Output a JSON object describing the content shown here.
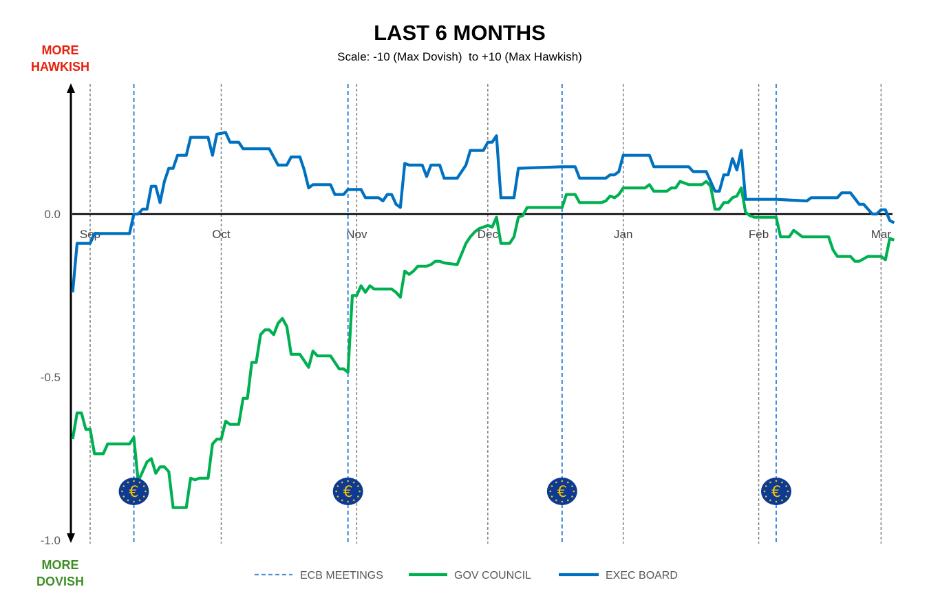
{
  "chart_data": {
    "type": "line",
    "title": "LAST 6 MONTHS",
    "subtitle": "Scale: -10 (Max Dovish)  to +10 (Max Hawkish)",
    "top_label": "MORE HAWKISH",
    "bottom_label": "MORE DOVISH",
    "ylim": [
      -1.0,
      0.4
    ],
    "yticks": [
      "0.0",
      "-0.5",
      "-1.0"
    ],
    "ytick_values": [
      0.0,
      -0.5,
      -1.0
    ],
    "xticks": [
      "Sep",
      "Oct",
      "Nov",
      "Dec",
      "Jan",
      "Feb",
      "Mar"
    ],
    "xtick_dates": [
      "Sep 1",
      "Oct 1",
      "Nov 1",
      "Dec 1",
      "Jan 1",
      "Feb 1",
      "Mar 1"
    ],
    "grid": "vertical dashed at month starts",
    "legend_position": "bottom",
    "colors": {
      "meetings": "#4A90D9",
      "gov_council": "#00B050",
      "exec_board": "#0070C0",
      "hawkish": "#E8200C",
      "dovish": "#3F8F28"
    },
    "meetings": {
      "name": "ECB MEETINGS",
      "dates": [
        "Sep 11",
        "Oct 30",
        "Dec 18",
        "Feb 5"
      ],
      "icon": "ecb-euro-icon"
    },
    "series": [
      {
        "name": "GOV COUNCIL",
        "points": [
          [
            "Aug 28",
            -0.69
          ],
          [
            "Aug 29",
            -0.61
          ],
          [
            "Aug 30",
            -0.61
          ],
          [
            "Aug 31",
            -0.66
          ],
          [
            "Sep 1",
            -0.66
          ],
          [
            "Sep 2",
            -0.735
          ],
          [
            "Sep 4",
            -0.735
          ],
          [
            "Sep 5",
            -0.705
          ],
          [
            "Sep 10",
            -0.705
          ],
          [
            "Sep 11",
            -0.685
          ],
          [
            "Sep 12",
            -0.82
          ],
          [
            "Sep 14",
            -0.76
          ],
          [
            "Sep 15",
            -0.75
          ],
          [
            "Sep 16",
            -0.795
          ],
          [
            "Sep 17",
            -0.775
          ],
          [
            "Sep 18",
            -0.775
          ],
          [
            "Sep 19",
            -0.79
          ],
          [
            "Sep 20",
            -0.9
          ],
          [
            "Sep 23",
            -0.9
          ],
          [
            "Sep 24",
            -0.81
          ],
          [
            "Sep 25",
            -0.815
          ],
          [
            "Sep 26",
            -0.81
          ],
          [
            "Sep 28",
            -0.81
          ],
          [
            "Sep 29",
            -0.705
          ],
          [
            "Sep 30",
            -0.69
          ],
          [
            "Oct 1",
            -0.69
          ],
          [
            "Oct 2",
            -0.635
          ],
          [
            "Oct 3",
            -0.645
          ],
          [
            "Oct 5",
            -0.645
          ],
          [
            "Oct 6",
            -0.565
          ],
          [
            "Oct 7",
            -0.565
          ],
          [
            "Oct 8",
            -0.455
          ],
          [
            "Oct 9",
            -0.455
          ],
          [
            "Oct 10",
            -0.37
          ],
          [
            "Oct 11",
            -0.355
          ],
          [
            "Oct 12",
            -0.355
          ],
          [
            "Oct 13",
            -0.37
          ],
          [
            "Oct 14",
            -0.335
          ],
          [
            "Oct 15",
            -0.32
          ],
          [
            "Oct 16",
            -0.345
          ],
          [
            "Oct 17",
            -0.43
          ],
          [
            "Oct 19",
            -0.43
          ],
          [
            "Oct 21",
            -0.47
          ],
          [
            "Oct 22",
            -0.42
          ],
          [
            "Oct 23",
            -0.435
          ],
          [
            "Oct 26",
            -0.435
          ],
          [
            "Oct 28",
            -0.475
          ],
          [
            "Oct 29",
            -0.475
          ],
          [
            "Oct 30",
            -0.485
          ],
          [
            "Oct 31",
            -0.25
          ],
          [
            "Nov 1",
            -0.25
          ],
          [
            "Nov 2",
            -0.22
          ],
          [
            "Nov 3",
            -0.24
          ],
          [
            "Nov 4",
            -0.22
          ],
          [
            "Nov 5",
            -0.23
          ],
          [
            "Nov 9",
            -0.23
          ],
          [
            "Nov 10",
            -0.24
          ],
          [
            "Nov 11",
            -0.255
          ],
          [
            "Nov 12",
            -0.175
          ],
          [
            "Nov 13",
            -0.185
          ],
          [
            "Nov 14",
            -0.175
          ],
          [
            "Nov 15",
            -0.16
          ],
          [
            "Nov 17",
            -0.16
          ],
          [
            "Nov 18",
            -0.155
          ],
          [
            "Nov 19",
            -0.145
          ],
          [
            "Nov 20",
            -0.145
          ],
          [
            "Nov 21",
            -0.15
          ],
          [
            "Nov 24",
            -0.155
          ],
          [
            "Nov 26",
            -0.09
          ],
          [
            "Nov 27",
            -0.07
          ],
          [
            "Nov 28",
            -0.055
          ],
          [
            "Nov 29",
            -0.045
          ],
          [
            "Dec 1",
            -0.035
          ],
          [
            "Dec 2",
            -0.04
          ],
          [
            "Dec 3",
            -0.01
          ],
          [
            "Dec 4",
            -0.09
          ],
          [
            "Dec 6",
            -0.09
          ],
          [
            "Dec 7",
            -0.07
          ],
          [
            "Dec 8",
            -0.01
          ],
          [
            "Dec 9",
            -0.005
          ],
          [
            "Dec 10",
            0.02
          ],
          [
            "Dec 18",
            0.02
          ],
          [
            "Dec 19",
            0.06
          ],
          [
            "Dec 21",
            0.06
          ],
          [
            "Dec 22",
            0.035
          ],
          [
            "Dec 27",
            0.035
          ],
          [
            "Dec 28",
            0.04
          ],
          [
            "Dec 29",
            0.055
          ],
          [
            "Dec 30",
            0.05
          ],
          [
            "Dec 31",
            0.06
          ],
          [
            "Jan 1",
            0.08
          ],
          [
            "Jan 6",
            0.08
          ],
          [
            "Jan 7",
            0.09
          ],
          [
            "Jan 8",
            0.07
          ],
          [
            "Jan 11",
            0.07
          ],
          [
            "Jan 12",
            0.08
          ],
          [
            "Jan 13",
            0.08
          ],
          [
            "Jan 14",
            0.1
          ],
          [
            "Jan 15",
            0.095
          ],
          [
            "Jan 16",
            0.09
          ],
          [
            "Jan 19",
            0.09
          ],
          [
            "Jan 20",
            0.1
          ],
          [
            "Jan 21",
            0.085
          ],
          [
            "Jan 22",
            0.015
          ],
          [
            "Jan 23",
            0.015
          ],
          [
            "Jan 24",
            0.035
          ],
          [
            "Jan 25",
            0.035
          ],
          [
            "Jan 26",
            0.05
          ],
          [
            "Jan 27",
            0.055
          ],
          [
            "Jan 28",
            0.08
          ],
          [
            "Jan 29",
            0.005
          ],
          [
            "Jan 30",
            -0.005
          ],
          [
            "Jan 31",
            -0.01
          ],
          [
            "Feb 1",
            -0.01
          ],
          [
            "Feb 5",
            -0.01
          ],
          [
            "Feb 6",
            -0.07
          ],
          [
            "Feb 8",
            -0.07
          ],
          [
            "Feb 9",
            -0.05
          ],
          [
            "Feb 10",
            -0.06
          ],
          [
            "Feb 11",
            -0.07
          ],
          [
            "Feb 12",
            -0.07
          ],
          [
            "Feb 17",
            -0.07
          ],
          [
            "Feb 18",
            -0.11
          ],
          [
            "Feb 19",
            -0.13
          ],
          [
            "Feb 22",
            -0.13
          ],
          [
            "Feb 23",
            -0.145
          ],
          [
            "Feb 24",
            -0.145
          ],
          [
            "Feb 26",
            -0.13
          ],
          [
            "Mar 1",
            -0.13
          ],
          [
            "Mar 2",
            -0.14
          ],
          [
            "Mar 3",
            -0.075
          ],
          [
            "Mar 4",
            -0.08
          ]
        ]
      },
      {
        "name": "EXEC BOARD",
        "points": [
          [
            "Aug 28",
            -0.24
          ],
          [
            "Aug 29",
            -0.09
          ],
          [
            "Sep 1",
            -0.09
          ],
          [
            "Sep 2",
            -0.06
          ],
          [
            "Sep 10",
            -0.06
          ],
          [
            "Sep 11",
            0.0
          ],
          [
            "Sep 12",
            0.0
          ],
          [
            "Sep 13",
            0.015
          ],
          [
            "Sep 14",
            0.015
          ],
          [
            "Sep 15",
            0.085
          ],
          [
            "Sep 16",
            0.085
          ],
          [
            "Sep 17",
            0.035
          ],
          [
            "Sep 18",
            0.1
          ],
          [
            "Sep 19",
            0.14
          ],
          [
            "Sep 20",
            0.14
          ],
          [
            "Sep 21",
            0.18
          ],
          [
            "Sep 23",
            0.18
          ],
          [
            "Sep 24",
            0.235
          ],
          [
            "Sep 28",
            0.235
          ],
          [
            "Sep 29",
            0.18
          ],
          [
            "Sep 30",
            0.245
          ],
          [
            "Oct 2",
            0.25
          ],
          [
            "Oct 3",
            0.22
          ],
          [
            "Oct 5",
            0.22
          ],
          [
            "Oct 6",
            0.2
          ],
          [
            "Oct 12",
            0.2
          ],
          [
            "Oct 14",
            0.15
          ],
          [
            "Oct 16",
            0.15
          ],
          [
            "Oct 17",
            0.175
          ],
          [
            "Oct 19",
            0.175
          ],
          [
            "Oct 20",
            0.135
          ],
          [
            "Oct 21",
            0.08
          ],
          [
            "Oct 22",
            0.09
          ],
          [
            "Oct 23",
            0.09
          ],
          [
            "Oct 26",
            0.09
          ],
          [
            "Oct 27",
            0.06
          ],
          [
            "Oct 29",
            0.06
          ],
          [
            "Oct 30",
            0.075
          ],
          [
            "Nov 2",
            0.075
          ],
          [
            "Nov 3",
            0.05
          ],
          [
            "Nov 6",
            0.05
          ],
          [
            "Nov 7",
            0.04
          ],
          [
            "Nov 8",
            0.06
          ],
          [
            "Nov 9",
            0.06
          ],
          [
            "Nov 10",
            0.03
          ],
          [
            "Nov 11",
            0.02
          ],
          [
            "Nov 12",
            0.155
          ],
          [
            "Nov 13",
            0.15
          ],
          [
            "Nov 16",
            0.15
          ],
          [
            "Nov 17",
            0.115
          ],
          [
            "Nov 18",
            0.15
          ],
          [
            "Nov 20",
            0.15
          ],
          [
            "Nov 21",
            0.11
          ],
          [
            "Nov 24",
            0.11
          ],
          [
            "Nov 26",
            0.15
          ],
          [
            "Nov 27",
            0.195
          ],
          [
            "Nov 30",
            0.195
          ],
          [
            "Dec 1",
            0.22
          ],
          [
            "Dec 2",
            0.22
          ],
          [
            "Dec 3",
            0.24
          ],
          [
            "Dec 4",
            0.05
          ],
          [
            "Dec 7",
            0.05
          ],
          [
            "Dec 8",
            0.14
          ],
          [
            "Dec 18",
            0.145
          ],
          [
            "Dec 21",
            0.145
          ],
          [
            "Dec 22",
            0.11
          ],
          [
            "Dec 28",
            0.11
          ],
          [
            "Dec 29",
            0.12
          ],
          [
            "Dec 30",
            0.12
          ],
          [
            "Dec 31",
            0.13
          ],
          [
            "Jan 1",
            0.18
          ],
          [
            "Jan 7",
            0.18
          ],
          [
            "Jan 8",
            0.145
          ],
          [
            "Jan 16",
            0.145
          ],
          [
            "Jan 17",
            0.13
          ],
          [
            "Jan 20",
            0.13
          ],
          [
            "Jan 22",
            0.07
          ],
          [
            "Jan 23",
            0.07
          ],
          [
            "Jan 24",
            0.12
          ],
          [
            "Jan 25",
            0.12
          ],
          [
            "Jan 26",
            0.17
          ],
          [
            "Jan 27",
            0.135
          ],
          [
            "Jan 28",
            0.195
          ],
          [
            "Jan 29",
            0.045
          ],
          [
            "Feb 5",
            0.045
          ],
          [
            "Feb 12",
            0.04
          ],
          [
            "Feb 13",
            0.05
          ],
          [
            "Feb 19",
            0.05
          ],
          [
            "Feb 20",
            0.065
          ],
          [
            "Feb 22",
            0.065
          ],
          [
            "Feb 24",
            0.03
          ],
          [
            "Feb 25",
            0.03
          ],
          [
            "Feb 27",
            0.0
          ],
          [
            "Feb 28",
            0.0
          ],
          [
            "Mar 1",
            0.013
          ],
          [
            "Mar 2",
            0.013
          ],
          [
            "Mar 3",
            -0.02
          ],
          [
            "Mar 4",
            -0.027
          ]
        ]
      }
    ]
  }
}
